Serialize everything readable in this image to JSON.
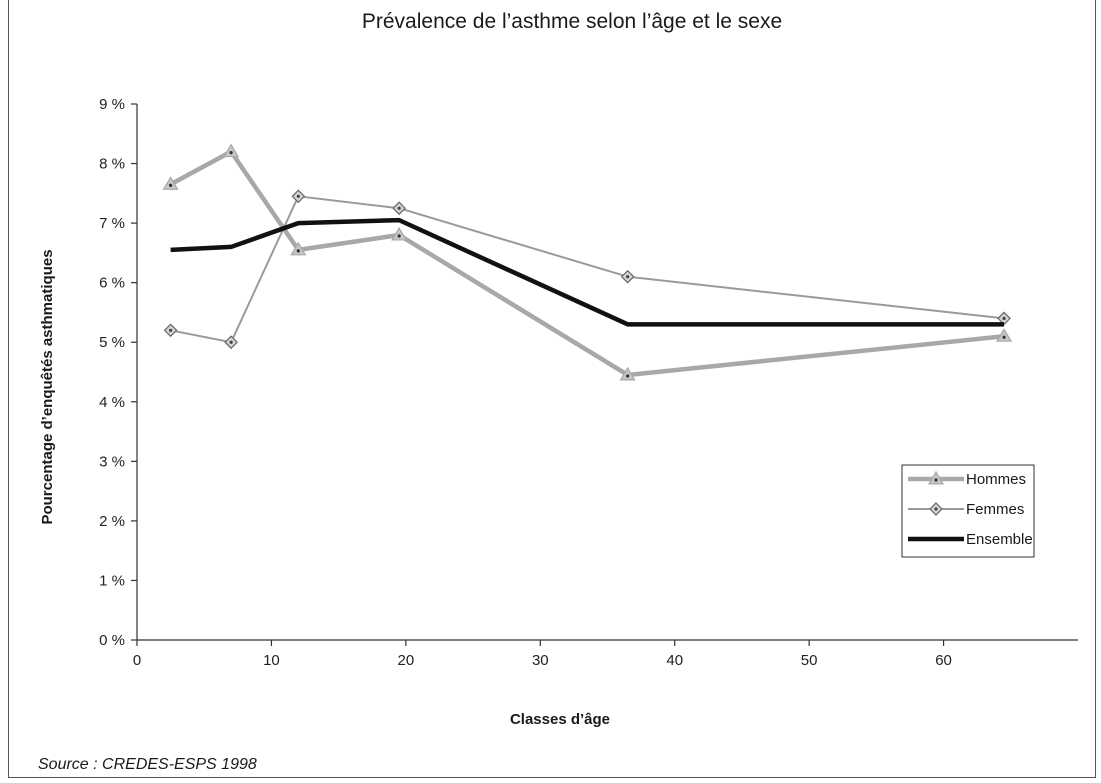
{
  "chart_data": {
    "type": "line",
    "title": "Prévalence de l’asthme selon l’âge et le sexe",
    "xlabel": "Classes d’âge",
    "ylabel": "Pourcentage d’enquêtés asthmatiques",
    "xlim": [
      0,
      70
    ],
    "ylim": [
      0,
      9
    ],
    "x_ticks": [
      0,
      10,
      20,
      30,
      40,
      50,
      60
    ],
    "y_ticks": [
      0,
      1,
      2,
      3,
      4,
      5,
      6,
      7,
      8,
      9
    ],
    "y_tick_labels": [
      "0 %",
      "1 %",
      "2 %",
      "3 %",
      "4 %",
      "5 %",
      "6 %",
      "7 %",
      "8 %",
      "9 %"
    ],
    "grid": false,
    "legend_position": "right",
    "series": [
      {
        "name": "Hommes",
        "color": "#a8a8a8",
        "marker": "triangle",
        "x": [
          2.5,
          7,
          12,
          19.5,
          36.5,
          64.5
        ],
        "y": [
          7.65,
          8.2,
          6.55,
          6.8,
          4.45,
          5.1
        ]
      },
      {
        "name": "Femmes",
        "color": "#9a9a9a",
        "marker": "diamond",
        "x": [
          2.5,
          7,
          12,
          19.5,
          36.5,
          64.5
        ],
        "y": [
          5.2,
          5.0,
          7.45,
          7.25,
          6.1,
          5.4
        ]
      },
      {
        "name": "Ensemble",
        "color": "#111111",
        "marker": "none",
        "x": [
          2.5,
          7,
          12,
          19.5,
          36.5,
          64.5
        ],
        "y": [
          6.55,
          6.6,
          7.0,
          7.05,
          5.3,
          5.3
        ]
      }
    ]
  },
  "source_note": "Source : CREDES-ESPS 1998"
}
